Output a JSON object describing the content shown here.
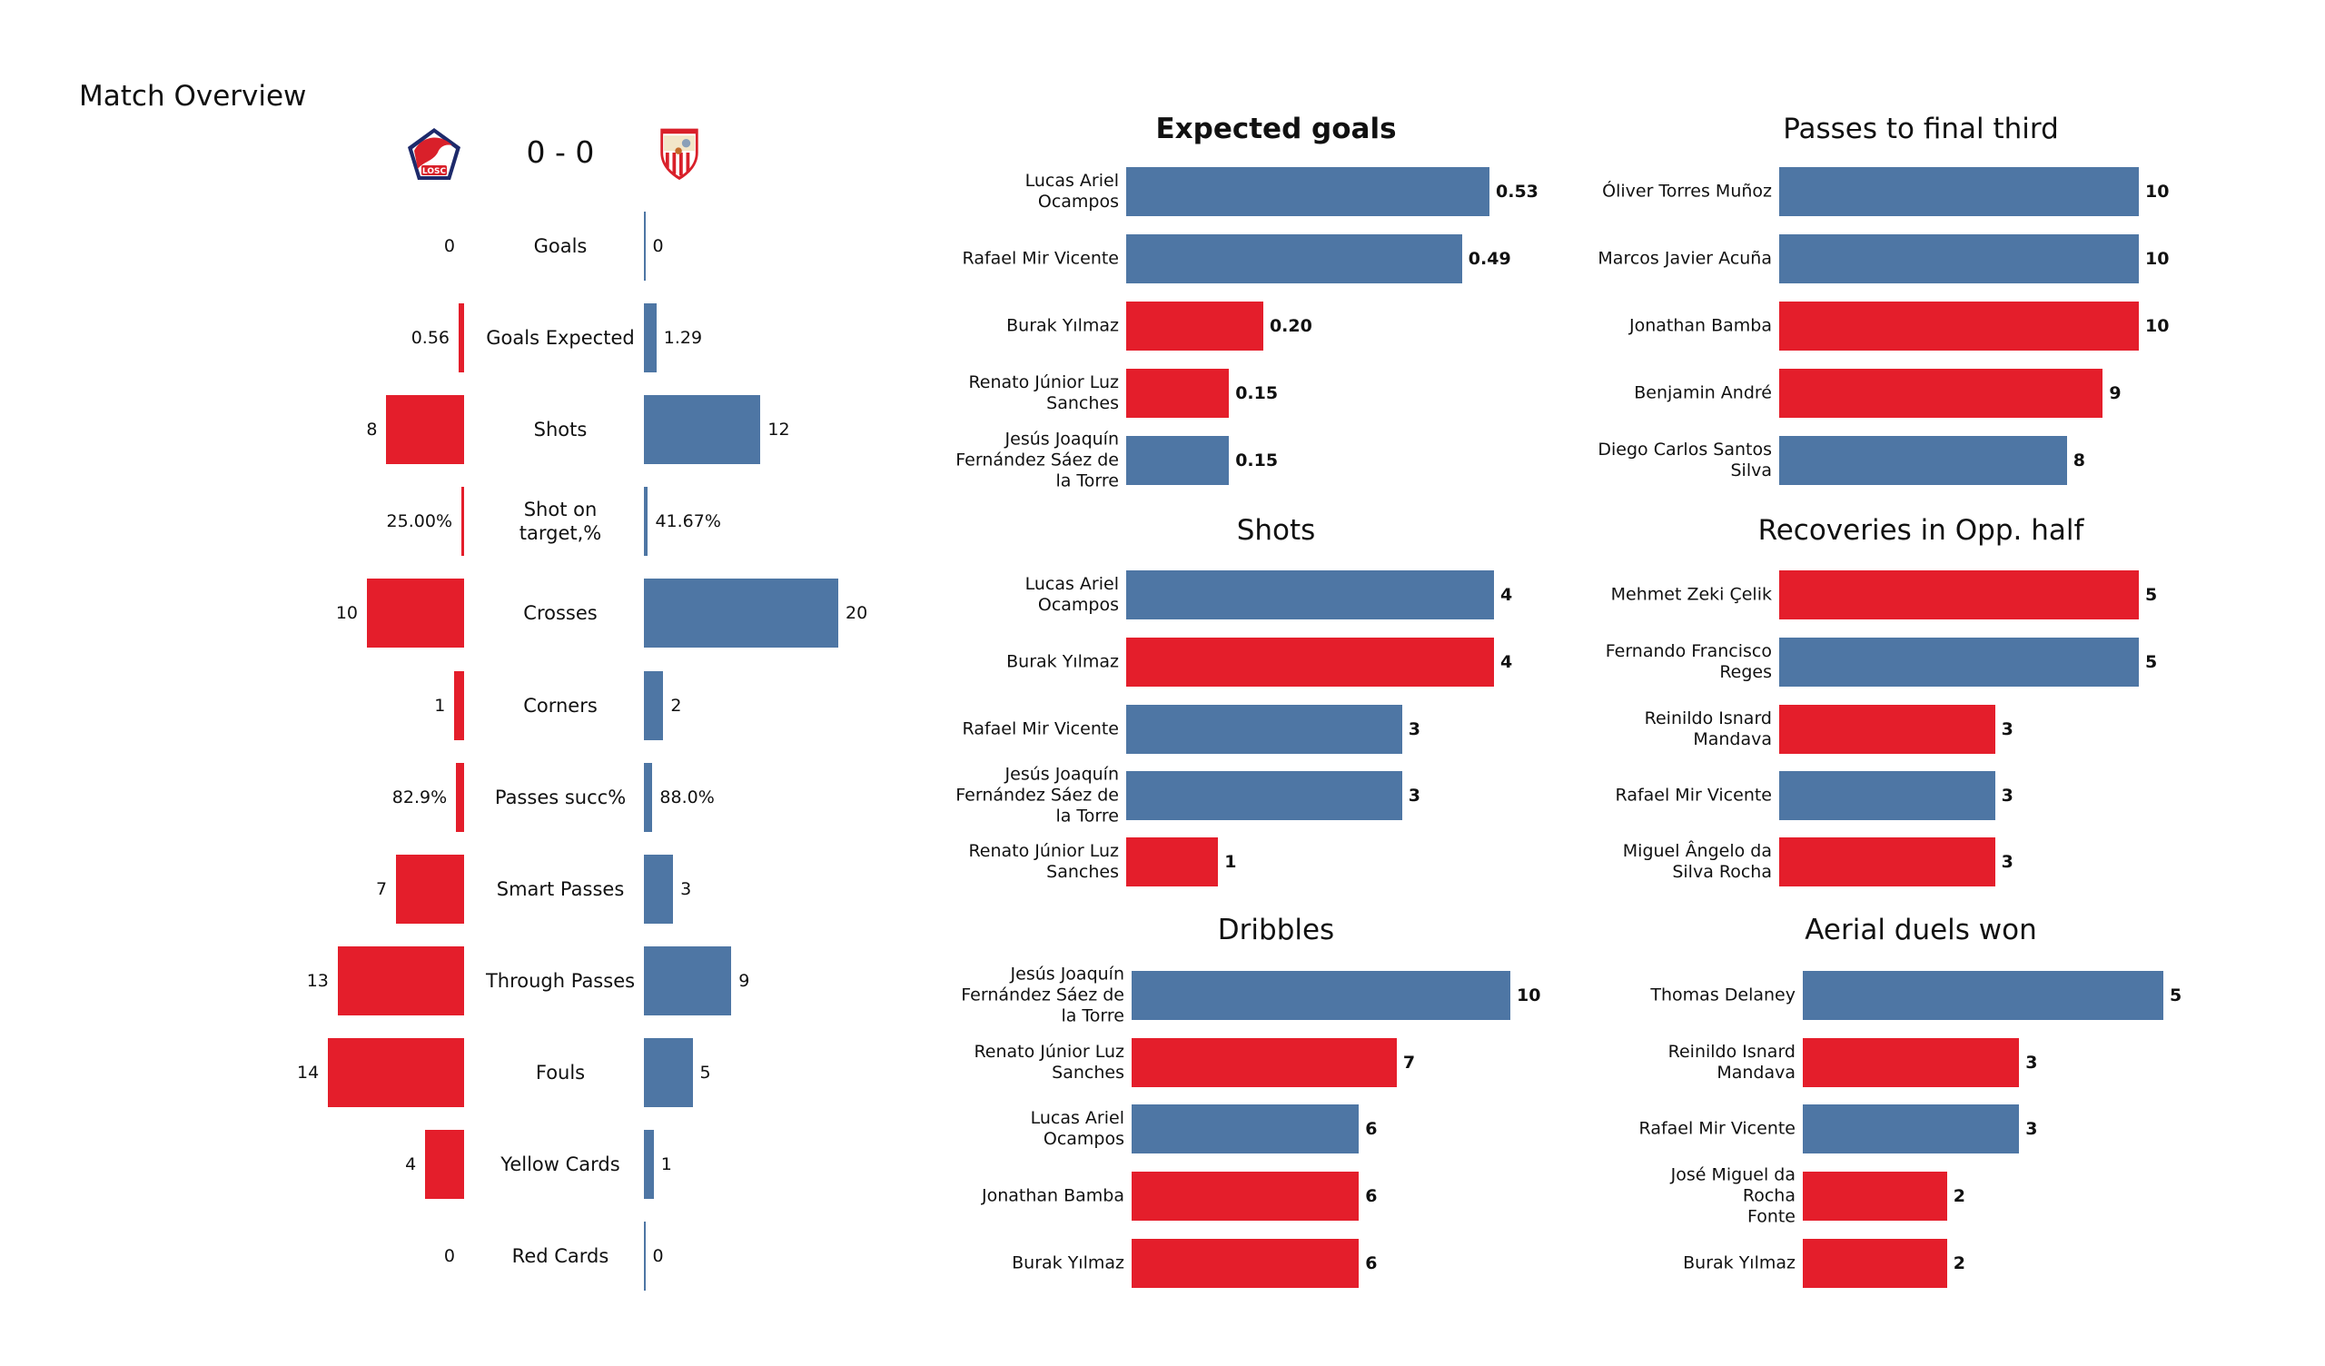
{
  "page": {
    "title": "Match Overview"
  },
  "match": {
    "home_team_logo": "lille-losc-crest-icon",
    "away_team_logo": "sevilla-fc-crest-icon",
    "score": "0 - 0"
  },
  "colors": {
    "home": "#E41E2B",
    "away": "#4E76A4"
  },
  "chart_data": [
    {
      "type": "bar",
      "title": "Match Overview",
      "orientation": "diverging-horizontal",
      "series": [
        {
          "name": "home",
          "color": "#E41E2B"
        },
        {
          "name": "away",
          "color": "#4E76A4"
        }
      ],
      "categories": [
        "Goals",
        "Goals Expected",
        "Shots",
        "Shot on target,%",
        "Crosses",
        "Corners",
        "Passes succ%",
        "Smart Passes",
        "Through Passes",
        "Fouls",
        "Yellow Cards",
        "Red Cards"
      ],
      "rows": [
        {
          "label": "Goals",
          "home": 0,
          "away": 0,
          "home_text": "0",
          "away_text": "0"
        },
        {
          "label": "Goals Expected",
          "home": 0.56,
          "away": 1.29,
          "home_text": "0.56",
          "away_text": "1.29"
        },
        {
          "label": "Shots",
          "home": 8,
          "away": 12,
          "home_text": "8",
          "away_text": "12"
        },
        {
          "label": "Shot on target,%",
          "home": 0.25,
          "away": 0.4167,
          "home_text": "25.00%",
          "away_text": "41.67%"
        },
        {
          "label": "Crosses",
          "home": 10,
          "away": 20,
          "home_text": "10",
          "away_text": "20"
        },
        {
          "label": "Corners",
          "home": 1,
          "away": 2,
          "home_text": "1",
          "away_text": "2"
        },
        {
          "label": "Passes succ%",
          "home": 0.829,
          "away": 0.88,
          "home_text": "82.9%",
          "away_text": "88.0%"
        },
        {
          "label": "Smart Passes",
          "home": 7,
          "away": 3,
          "home_text": "7",
          "away_text": "3"
        },
        {
          "label": "Through Passes",
          "home": 13,
          "away": 9,
          "home_text": "13",
          "away_text": "9"
        },
        {
          "label": "Fouls",
          "home": 14,
          "away": 5,
          "home_text": "14",
          "away_text": "5"
        },
        {
          "label": "Yellow Cards",
          "home": 4,
          "away": 1,
          "home_text": "4",
          "away_text": "1"
        },
        {
          "label": "Red Cards",
          "home": 0,
          "away": 0,
          "home_text": "0",
          "away_text": "0"
        }
      ]
    },
    {
      "type": "bar",
      "title": "Expected goals",
      "title_bold": true,
      "xlim": [
        0,
        0.53
      ],
      "players": [
        {
          "name": "Lucas Ariel\nOcampos",
          "value": 0.53,
          "text": "0.53",
          "team": "away"
        },
        {
          "name": "Rafael Mir Vicente",
          "value": 0.49,
          "text": "0.49",
          "team": "away"
        },
        {
          "name": "Burak Yılmaz",
          "value": 0.2,
          "text": "0.20",
          "team": "home"
        },
        {
          "name": "Renato Júnior Luz\nSanches",
          "value": 0.15,
          "text": "0.15",
          "team": "home"
        },
        {
          "name": "Jesús Joaquín\nFernández Sáez de\nla Torre",
          "value": 0.15,
          "text": "0.15",
          "team": "away"
        }
      ]
    },
    {
      "type": "bar",
      "title": "Shots",
      "title_bold": false,
      "xlim": [
        0,
        4
      ],
      "players": [
        {
          "name": "Lucas Ariel\nOcampos",
          "value": 4,
          "text": "4",
          "team": "away"
        },
        {
          "name": "Burak Yılmaz",
          "value": 4,
          "text": "4",
          "team": "home"
        },
        {
          "name": "Rafael Mir Vicente",
          "value": 3,
          "text": "3",
          "team": "away"
        },
        {
          "name": "Jesús Joaquín\nFernández Sáez de\nla Torre",
          "value": 3,
          "text": "3",
          "team": "away"
        },
        {
          "name": "Renato Júnior Luz\nSanches",
          "value": 1,
          "text": "1",
          "team": "home"
        }
      ]
    },
    {
      "type": "bar",
      "title": "Dribbles",
      "title_bold": false,
      "xlim": [
        0,
        10
      ],
      "players": [
        {
          "name": "Jesús Joaquín\nFernández Sáez de\nla Torre",
          "value": 10,
          "text": "10",
          "team": "away"
        },
        {
          "name": "Renato Júnior Luz\nSanches",
          "value": 7,
          "text": "7",
          "team": "home"
        },
        {
          "name": "Lucas Ariel\nOcampos",
          "value": 6,
          "text": "6",
          "team": "away"
        },
        {
          "name": "Jonathan Bamba",
          "value": 6,
          "text": "6",
          "team": "home"
        },
        {
          "name": "Burak Yılmaz",
          "value": 6,
          "text": "6",
          "team": "home"
        }
      ]
    },
    {
      "type": "bar",
      "title": "Passes to final third",
      "title_bold": false,
      "xlim": [
        0,
        10
      ],
      "players": [
        {
          "name": "Óliver Torres Muñoz",
          "value": 10,
          "text": "10",
          "team": "away"
        },
        {
          "name": "Marcos Javier Acuña",
          "value": 10,
          "text": "10",
          "team": "away"
        },
        {
          "name": "Jonathan Bamba",
          "value": 10,
          "text": "10",
          "team": "home"
        },
        {
          "name": "Benjamin André",
          "value": 9,
          "text": "9",
          "team": "home"
        },
        {
          "name": "Diego Carlos Santos\nSilva",
          "value": 8,
          "text": "8",
          "team": "away"
        }
      ]
    },
    {
      "type": "bar",
      "title": "Recoveries in Opp. half",
      "title_bold": false,
      "xlim": [
        0,
        5
      ],
      "players": [
        {
          "name": "Mehmet Zeki Çelik",
          "value": 5,
          "text": "5",
          "team": "home"
        },
        {
          "name": "Fernando Francisco\nReges",
          "value": 5,
          "text": "5",
          "team": "away"
        },
        {
          "name": "Reinildo Isnard\nMandava",
          "value": 3,
          "text": "3",
          "team": "home"
        },
        {
          "name": "Rafael Mir Vicente",
          "value": 3,
          "text": "3",
          "team": "away"
        },
        {
          "name": "Miguel Ângelo da\nSilva Rocha",
          "value": 3,
          "text": "3",
          "team": "home"
        }
      ]
    },
    {
      "type": "bar",
      "title": "Aerial duels won",
      "title_bold": false,
      "xlim": [
        0,
        5
      ],
      "players": [
        {
          "name": "Thomas Delaney",
          "value": 5,
          "text": "5",
          "team": "away"
        },
        {
          "name": "Reinildo Isnard\nMandava",
          "value": 3,
          "text": "3",
          "team": "home"
        },
        {
          "name": "Rafael Mir Vicente",
          "value": 3,
          "text": "3",
          "team": "away"
        },
        {
          "name": "José Miguel da Rocha\nFonte",
          "value": 2,
          "text": "2",
          "team": "home"
        },
        {
          "name": "Burak Yılmaz",
          "value": 2,
          "text": "2",
          "team": "home"
        }
      ]
    }
  ]
}
